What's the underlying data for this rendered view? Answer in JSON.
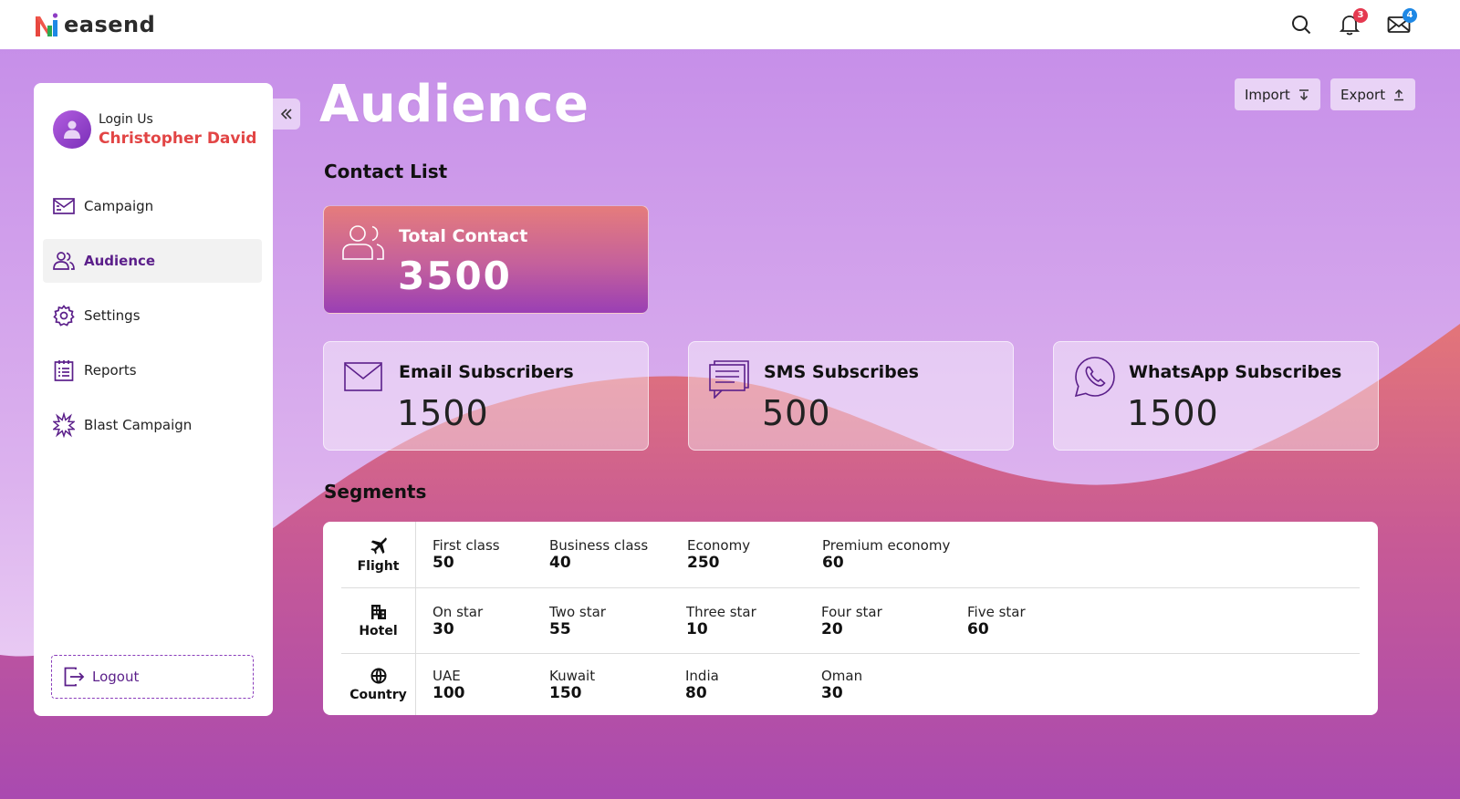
{
  "app": {
    "logo_text": "easend"
  },
  "header": {
    "notifications_count": "3",
    "messages_count": "4",
    "colors": {
      "notif_badge": "#e53950",
      "message_badge": "#1e88e5"
    }
  },
  "sidebar": {
    "login_label": "Login Us",
    "user_name": "Christopher David",
    "items": [
      {
        "label": "Campaign",
        "icon": "campaign-mail-icon"
      },
      {
        "label": "Audience",
        "icon": "audience-users-icon",
        "active": true
      },
      {
        "label": "Settings",
        "icon": "gear-icon"
      },
      {
        "label": "Reports",
        "icon": "reports-icon"
      },
      {
        "label": "Blast Campaign",
        "icon": "blast-icon"
      }
    ],
    "logout_label": "Logout"
  },
  "main": {
    "title": "Audience",
    "import_label": "Import",
    "export_label": "Export",
    "contact_list_title": "Contact List",
    "total": {
      "label": "Total Contact",
      "value": "3500"
    },
    "subscribers": [
      {
        "label": "Email Subscribers",
        "value": "1500",
        "icon": "email-icon"
      },
      {
        "label": "SMS Subscribes",
        "value": "500",
        "icon": "sms-chat-icon"
      },
      {
        "label": "WhatsApp Subscribes",
        "value": "1500",
        "icon": "whatsapp-icon"
      }
    ],
    "segments_title": "Segments",
    "segments": [
      {
        "name": "Flight",
        "icon": "airplane-icon",
        "items": [
          {
            "label": "First class",
            "value": "50"
          },
          {
            "label": "Business class",
            "value": "40"
          },
          {
            "label": "Economy",
            "value": "250"
          },
          {
            "label": "Premium economy",
            "value": "60"
          }
        ]
      },
      {
        "name": "Hotel",
        "icon": "building-icon",
        "items": [
          {
            "label": "On star",
            "value": "30"
          },
          {
            "label": "Two star",
            "value": "55"
          },
          {
            "label": "Three star",
            "value": "10"
          },
          {
            "label": "Four star",
            "value": "20"
          },
          {
            "label": "Five star",
            "value": "60"
          }
        ]
      },
      {
        "name": "Country",
        "icon": "globe-icon",
        "items": [
          {
            "label": "UAE",
            "value": "100"
          },
          {
            "label": "Kuwait",
            "value": "150"
          },
          {
            "label": "India",
            "value": "80"
          },
          {
            "label": "Oman",
            "value": "30"
          }
        ]
      }
    ]
  },
  "theme": {
    "accent": "#5b1f8a",
    "user_name_color": "#e24545"
  }
}
